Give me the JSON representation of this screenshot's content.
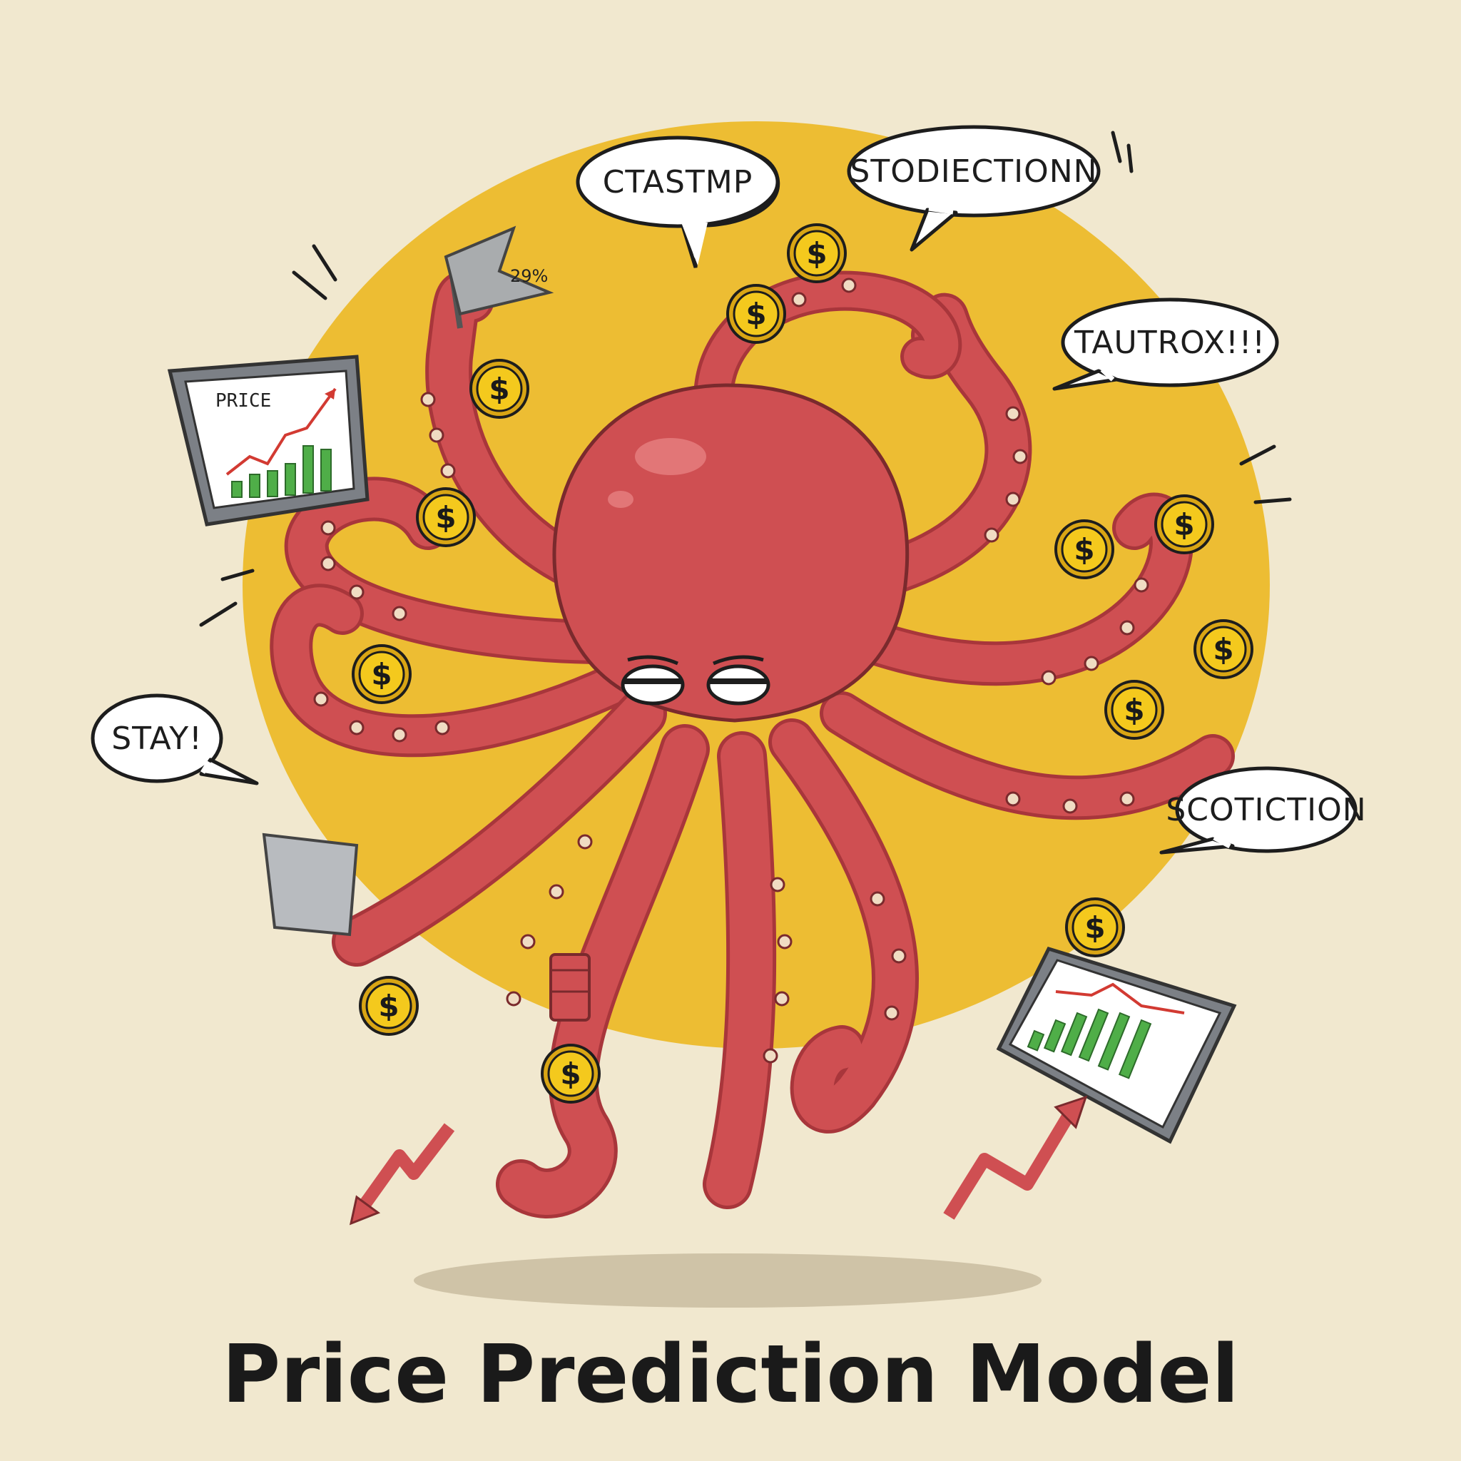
{
  "title": "Price Prediction Model",
  "bubbles": {
    "top_left": "CTASTMP",
    "top_right": "STODIECTIONN",
    "right_upper": "TAUTROX!!!",
    "left": "STAY!",
    "right_lower": "SCOTICTION"
  },
  "flag_label": "29%",
  "chart_label": "PRICE",
  "coin_symbol": "$",
  "colors": {
    "background": "#f1e8cf",
    "sun": "#edbd33",
    "octopus": "#cf4f52",
    "octopus_dark": "#a8363b",
    "coin": "#f4c91d",
    "bars": "#4fae48",
    "trend": "#d23a32"
  }
}
